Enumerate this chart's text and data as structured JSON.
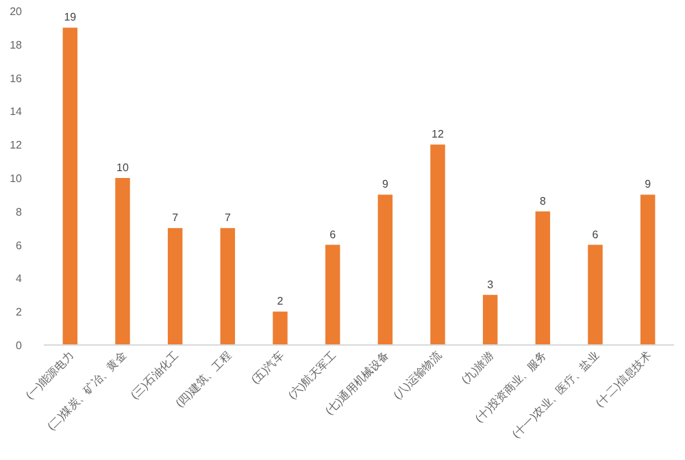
{
  "chart_data": {
    "type": "bar",
    "categories": [
      "(一)能源电力",
      "(二)煤炭、矿冶、黄金",
      "(三)石油化工",
      "(四)建筑、工程",
      "(五)汽车",
      "(六)航天军工",
      "(七)通用机械设备",
      "(八)运输物流",
      "(九)旅游",
      "(十)投资商业、服务",
      "(十一)农业、医疗、盐业",
      "(十二)信息技术"
    ],
    "values": [
      19,
      10,
      7,
      7,
      2,
      6,
      9,
      12,
      3,
      8,
      6,
      9
    ],
    "color": "#ed7d31",
    "ylim": [
      0,
      20
    ],
    "yticks": [
      0,
      2,
      4,
      6,
      8,
      10,
      12,
      14,
      16,
      18,
      20
    ],
    "data_labels": true,
    "grid": false
  }
}
